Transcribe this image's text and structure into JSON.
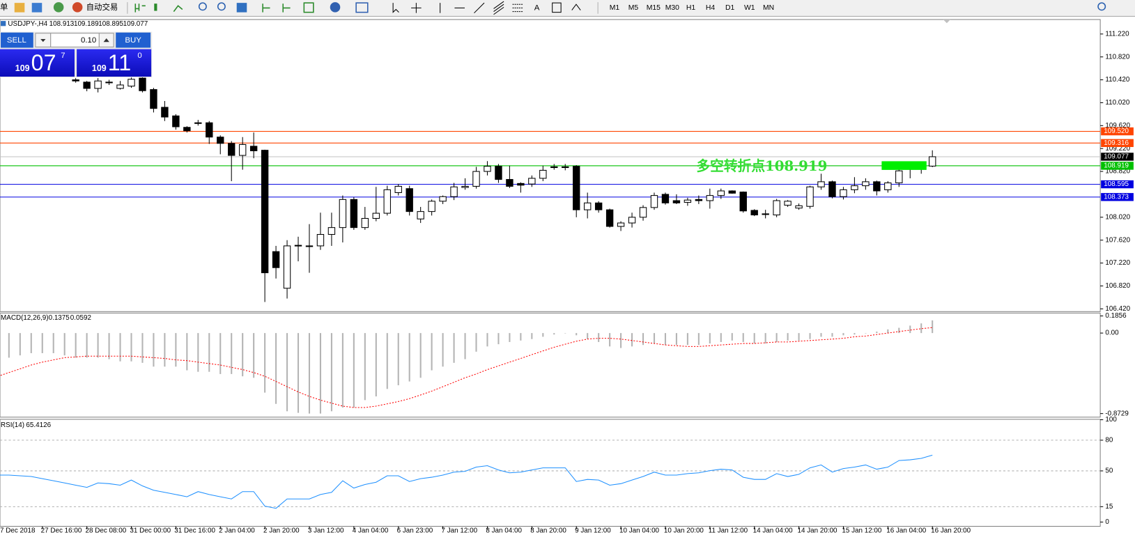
{
  "toolbar": {
    "menu_fragment": "单",
    "auto_trading": "自动交易",
    "text_tool": "A",
    "timeframes": [
      "M1",
      "M5",
      "M15",
      "M30",
      "H1",
      "H4",
      "D1",
      "W1",
      "MN"
    ]
  },
  "trade_panel": {
    "sell": "SELL",
    "buy": "BUY",
    "lot": "0.10",
    "bid": {
      "big_figure": "109",
      "pips": "07",
      "point": "7"
    },
    "ask": {
      "big_figure": "109",
      "pips": "11",
      "point": "0"
    }
  },
  "chart_data": [
    {
      "type": "candlestick",
      "title": "USDJPY-,H4",
      "categories": [
        "7 Dec 2018",
        null,
        null,
        null,
        "27 Dec 16:00",
        null,
        null,
        null,
        "28 Dec 08:00",
        null,
        null,
        null,
        "31 Dec 00:00",
        null,
        null,
        null,
        "31 Dec 16:00",
        null,
        null,
        null,
        "2 Jan 04:00",
        null,
        null,
        null,
        "2 Jan 20:00",
        null,
        null,
        null,
        "3 Jan 12:00",
        null,
        null,
        null,
        "4 Jan 04:00",
        null,
        null,
        null,
        "6 Jan 23:00",
        null,
        null,
        null,
        "7 Jan 12:00",
        null,
        null,
        null,
        "8 Jan 04:00",
        null,
        null,
        null,
        "8 Jan 20:00",
        null,
        null,
        null,
        "9 Jan 12:00",
        null,
        null,
        null,
        "10 Jan 04:00",
        null,
        null,
        null,
        "10 Jan 20:00",
        null,
        null,
        null,
        "11 Jan 12:00",
        null,
        null,
        null,
        "14 Jan 04:00",
        null,
        null,
        null,
        "14 Jan 20:00",
        null,
        null,
        null,
        "15 Jan 12:00",
        null,
        null,
        null,
        "16 Jan 04:00",
        null,
        null,
        null,
        "16 Jan 20:00"
      ],
      "open": [
        null,
        null,
        null,
        null,
        null,
        null,
        null,
        110.42,
        110.38,
        110.27,
        110.38,
        110.27,
        110.31,
        110.45,
        110.25,
        109.94,
        109.79,
        109.59,
        109.67,
        109.67,
        109.42,
        109.31,
        109.1,
        109.26,
        109.19,
        107.42,
        106.78,
        107.52,
        107.51,
        107.52,
        107.72,
        107.84,
        108.33,
        107.84,
        108.0,
        108.09,
        108.45,
        108.52,
        107.99,
        108.12,
        108.3,
        108.38,
        108.54,
        108.56,
        108.82,
        108.91,
        108.68,
        108.61,
        108.6,
        108.7,
        108.89,
        108.9,
        108.91,
        108.15,
        108.27,
        108.15,
        107.86,
        107.92,
        108.02,
        108.19,
        108.42,
        108.31,
        108.28,
        108.33,
        108.31,
        108.4,
        108.48,
        108.46,
        108.14,
        108.08,
        108.06,
        108.23,
        108.18,
        108.21,
        108.55,
        108.64,
        108.38,
        108.5,
        108.57,
        108.64,
        108.5,
        108.62,
        108.86,
        108.88,
        108.913
      ],
      "high": [
        null,
        null,
        null,
        null,
        null,
        null,
        null,
        110.45,
        110.4,
        110.45,
        110.42,
        110.4,
        110.46,
        110.47,
        110.28,
        110.05,
        109.82,
        109.61,
        109.72,
        109.7,
        109.45,
        109.35,
        109.42,
        109.5,
        109.2,
        107.52,
        107.62,
        107.68,
        107.9,
        108.1,
        108.1,
        108.4,
        108.37,
        108.2,
        108.55,
        108.57,
        108.6,
        108.57,
        108.2,
        108.33,
        108.4,
        108.62,
        108.7,
        108.9,
        109.0,
        108.95,
        108.92,
        108.63,
        108.75,
        108.92,
        108.95,
        108.95,
        108.93,
        108.45,
        108.3,
        108.17,
        107.95,
        108.1,
        108.23,
        108.45,
        108.45,
        108.42,
        108.36,
        108.4,
        108.52,
        108.52,
        108.49,
        108.47,
        108.16,
        108.15,
        108.34,
        108.32,
        108.26,
        108.57,
        108.78,
        108.66,
        108.55,
        108.72,
        108.7,
        108.66,
        108.65,
        108.92,
        108.9,
        108.92,
        109.189
      ],
      "low": [
        null,
        null,
        null,
        null,
        null,
        null,
        null,
        110.37,
        110.22,
        110.2,
        110.33,
        110.25,
        110.28,
        110.2,
        109.85,
        109.7,
        109.55,
        109.5,
        109.62,
        109.3,
        109.12,
        108.65,
        108.85,
        109.05,
        106.54,
        106.95,
        106.6,
        107.25,
        107.05,
        107.45,
        107.52,
        107.58,
        107.8,
        107.8,
        107.95,
        108.05,
        108.4,
        108.05,
        107.92,
        108.05,
        108.25,
        108.32,
        108.5,
        108.52,
        108.75,
        108.62,
        108.53,
        108.45,
        108.55,
        108.65,
        108.85,
        108.84,
        108.02,
        108.0,
        108.1,
        107.84,
        107.78,
        107.84,
        107.96,
        108.15,
        108.24,
        108.25,
        108.22,
        108.25,
        108.17,
        108.34,
        108.43,
        108.1,
        108.04,
        108.0,
        108.02,
        108.2,
        108.15,
        108.17,
        108.5,
        108.35,
        108.33,
        108.44,
        108.5,
        108.4,
        108.45,
        108.55,
        108.7,
        108.78,
        108.895
      ],
      "close": [
        null,
        null,
        null,
        null,
        null,
        null,
        null,
        110.4,
        110.27,
        110.4,
        110.37,
        110.33,
        110.43,
        110.23,
        109.92,
        109.77,
        109.6,
        109.53,
        109.66,
        109.42,
        109.31,
        109.1,
        109.29,
        109.18,
        107.05,
        107.14,
        107.52,
        107.53,
        107.52,
        107.72,
        107.84,
        108.33,
        107.84,
        108.0,
        108.09,
        108.5,
        108.56,
        108.12,
        108.12,
        108.3,
        108.38,
        108.55,
        108.56,
        108.82,
        108.91,
        108.68,
        108.56,
        108.58,
        108.7,
        108.84,
        108.9,
        108.9,
        108.15,
        108.27,
        108.15,
        107.86,
        107.92,
        108.02,
        108.19,
        108.4,
        108.27,
        108.27,
        108.32,
        108.31,
        108.4,
        108.48,
        108.44,
        108.13,
        108.06,
        108.07,
        108.31,
        108.3,
        108.22,
        108.55,
        108.64,
        108.38,
        108.5,
        108.57,
        108.64,
        108.48,
        108.62,
        108.83,
        108.87,
        108.88,
        109.077
      ],
      "ylim": [
        106.372,
        111.473
      ],
      "yticks": [
        {
          "value": 111.22,
          "label": "111.220"
        },
        {
          "value": 110.82,
          "label": "110.820"
        },
        {
          "value": 110.42,
          "label": "110.420"
        },
        {
          "value": 110.02,
          "label": "110.020"
        },
        {
          "value": 109.62,
          "label": "109.620"
        },
        {
          "value": 109.22,
          "label": "109.220"
        },
        {
          "value": 108.82,
          "label": "108.820"
        },
        {
          "value": 108.02,
          "label": "108.020"
        },
        {
          "value": 107.62,
          "label": "107.620"
        },
        {
          "value": 107.22,
          "label": "107.220"
        },
        {
          "value": 106.82,
          "label": "106.820"
        },
        {
          "value": 106.42,
          "label": "106.420"
        }
      ],
      "hlines": [
        {
          "value": 109.52,
          "label": "109.520",
          "color": "#ff4500"
        },
        {
          "value": 109.316,
          "color": "#ff4500"
        },
        {
          "value": 108.919,
          "color": "#00c000"
        },
        {
          "value": 108.595,
          "color": "#0000e0"
        },
        {
          "value": 108.373,
          "color": "#0000e0"
        }
      ],
      "annotation": {
        "text": "多空转折点108.919",
        "color": "#33dd33"
      }
    },
    {
      "type": "macd",
      "title": "MACD(12,26,9)",
      "series": [
        {
          "type": "bar",
          "color": "#b4b4b4",
          "values": [
            null,
            -0.267,
            -0.242,
            -0.218,
            -0.218,
            -0.218,
            -0.242,
            -0.267,
            -0.267,
            -0.267,
            -0.283,
            -0.307,
            -0.307,
            -0.323,
            -0.364,
            -0.364,
            -0.364,
            -0.404,
            -0.42,
            -0.42,
            -0.444,
            -0.444,
            -0.469,
            -0.485,
            -0.646,
            -0.768,
            -0.848,
            -0.865,
            -0.873,
            -0.873,
            -0.848,
            -0.808,
            -0.808,
            -0.727,
            -0.687,
            -0.606,
            -0.566,
            -0.525,
            -0.485,
            -0.404,
            -0.364,
            -0.323,
            -0.283,
            -0.202,
            -0.145,
            -0.121,
            -0.097,
            -0.081,
            -0.065,
            -0.04,
            -0.016,
            0.0,
            -0.024,
            -0.065,
            -0.097,
            -0.145,
            -0.162,
            -0.145,
            -0.129,
            -0.113,
            -0.129,
            -0.129,
            -0.129,
            -0.129,
            -0.113,
            -0.097,
            -0.081,
            -0.097,
            -0.113,
            -0.113,
            -0.097,
            -0.081,
            -0.081,
            -0.065,
            -0.04,
            -0.04,
            -0.024,
            -0.016,
            0.0,
            0.016,
            0.04,
            0.057,
            0.081,
            0.105,
            0.1375
          ]
        },
        {
          "type": "line",
          "color": "#ff0000",
          "values": [
            -0.469,
            -0.428,
            -0.388,
            -0.347,
            -0.315,
            -0.291,
            -0.267,
            -0.259,
            -0.25,
            -0.25,
            -0.25,
            -0.25,
            -0.25,
            -0.259,
            -0.267,
            -0.275,
            -0.291,
            -0.299,
            -0.315,
            -0.331,
            -0.347,
            -0.372,
            -0.396,
            -0.428,
            -0.469,
            -0.525,
            -0.582,
            -0.638,
            -0.687,
            -0.727,
            -0.76,
            -0.792,
            -0.808,
            -0.808,
            -0.792,
            -0.768,
            -0.743,
            -0.711,
            -0.671,
            -0.63,
            -0.582,
            -0.533,
            -0.485,
            -0.444,
            -0.396,
            -0.356,
            -0.315,
            -0.275,
            -0.234,
            -0.194,
            -0.154,
            -0.121,
            -0.089,
            -0.065,
            -0.057,
            -0.057,
            -0.065,
            -0.081,
            -0.097,
            -0.113,
            -0.129,
            -0.137,
            -0.145,
            -0.145,
            -0.137,
            -0.129,
            -0.121,
            -0.113,
            -0.113,
            -0.105,
            -0.097,
            -0.097,
            -0.089,
            -0.081,
            -0.073,
            -0.065,
            -0.057,
            -0.04,
            -0.032,
            -0.016,
            0.0,
            0.016,
            0.032,
            0.048,
            0.0592
          ]
        }
      ],
      "ylim": [
        -0.912,
        0.217
      ],
      "yticks": [
        0.1856,
        {
          "value": 0,
          "label": "0.00"
        },
        -0.8729
      ]
    },
    {
      "type": "line",
      "title": "RSI(14)",
      "color": "#1e90ff",
      "values": [
        45.9,
        45.9,
        45.2,
        44.5,
        42.4,
        40.3,
        38.2,
        36.0,
        33.9,
        38.2,
        37.5,
        36.0,
        41.0,
        35.3,
        31.1,
        29.0,
        26.9,
        24.7,
        29.7,
        26.9,
        24.7,
        22.6,
        29.7,
        29.7,
        15.5,
        13.4,
        22.6,
        22.6,
        22.6,
        26.9,
        29.0,
        40.3,
        33.2,
        36.7,
        38.9,
        45.2,
        45.2,
        39.6,
        42.4,
        43.8,
        45.9,
        48.8,
        49.5,
        53.7,
        55.1,
        50.9,
        48.1,
        48.8,
        50.9,
        53.0,
        53.0,
        53.0,
        39.6,
        41.7,
        41.0,
        36.0,
        37.5,
        41.0,
        44.5,
        48.8,
        45.9,
        45.9,
        47.3,
        48.1,
        50.2,
        51.6,
        50.9,
        43.8,
        41.7,
        41.7,
        47.3,
        44.5,
        46.6,
        53.0,
        55.8,
        48.8,
        52.3,
        53.7,
        55.8,
        51.6,
        53.7,
        60.1,
        60.8,
        62.2,
        65.4126
      ],
      "ylim": [
        -4.2,
        100.4
      ],
      "yticks": [
        100,
        80,
        50,
        15,
        0
      ],
      "levels": [
        80,
        50,
        15
      ]
    }
  ]
}
